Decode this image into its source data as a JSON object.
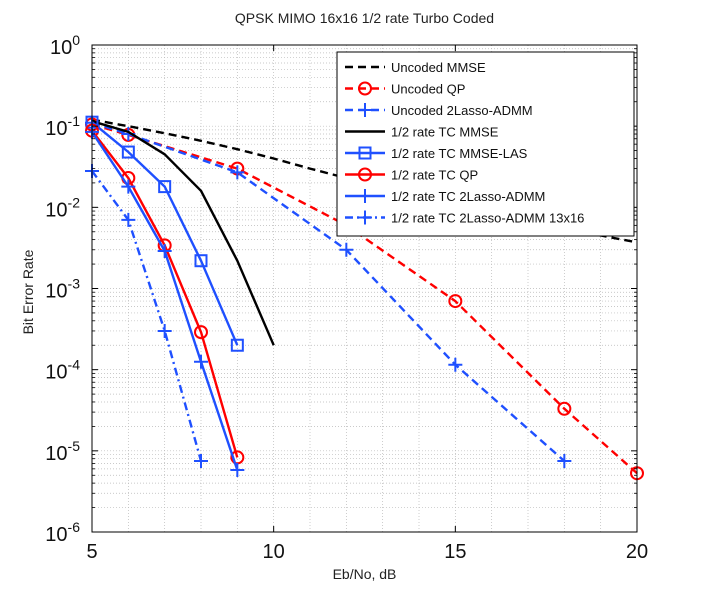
{
  "chart_data": {
    "type": "line",
    "title": "QPSK MIMO 16x16 1/2 rate Turbo Coded",
    "xlabel": "Eb/No, dB",
    "ylabel": "Bit Error Rate",
    "xlim": [
      5,
      20
    ],
    "ylim": [
      1e-06,
      1
    ],
    "yscale": "log",
    "grid": true,
    "legend_position": "top-right",
    "x_ticks": [
      "5",
      "10",
      "15",
      "20"
    ],
    "y_ticks": [
      {
        "base": "10",
        "exp": "0"
      },
      {
        "base": "10",
        "exp": "-1"
      },
      {
        "base": "10",
        "exp": "-2"
      },
      {
        "base": "10",
        "exp": "-3"
      },
      {
        "base": "10",
        "exp": "-4"
      },
      {
        "base": "10",
        "exp": "-5"
      },
      {
        "base": "10",
        "exp": "-6"
      }
    ],
    "series": [
      {
        "name": "Uncoded MMSE",
        "color": "#000000",
        "dash": "dashed",
        "marker": "none",
        "x": [
          5,
          6,
          7,
          8,
          9,
          10,
          11,
          12,
          13,
          14,
          15,
          16,
          17,
          18,
          19,
          20
        ],
        "y": [
          0.12,
          0.1,
          0.082,
          0.066,
          0.052,
          0.04,
          0.03,
          0.023,
          0.0175,
          0.0135,
          0.0104,
          0.0082,
          0.0065,
          0.0052,
          0.0045,
          0.0037
        ]
      },
      {
        "name": "Uncoded QP",
        "color": "#ff0000",
        "dash": "dashed",
        "marker": "circle",
        "x": [
          5,
          6,
          9,
          12,
          15,
          18,
          20
        ],
        "y": [
          0.105,
          0.078,
          0.03,
          0.006,
          0.0007,
          3.3e-05,
          5.3e-06
        ]
      },
      {
        "name": "Uncoded 2Lasso-ADMM",
        "color": "#1f50ff",
        "dash": "dashed",
        "marker": "plus",
        "x": [
          5,
          6,
          9,
          12,
          15,
          18
        ],
        "y": [
          0.11,
          0.08,
          0.027,
          0.003,
          0.000115,
          7.5e-06
        ]
      },
      {
        "name": "1/2 rate TC MMSE",
        "color": "#000000",
        "dash": "solid",
        "marker": "none",
        "x": [
          5,
          6,
          7,
          8,
          9,
          10
        ],
        "y": [
          0.115,
          0.085,
          0.045,
          0.016,
          0.0022,
          0.0002
        ]
      },
      {
        "name": "1/2 rate TC MMSE-LAS",
        "color": "#1f50ff",
        "dash": "solid",
        "marker": "square",
        "x": [
          5,
          6,
          7,
          8,
          9
        ],
        "y": [
          0.112,
          0.048,
          0.018,
          0.0022,
          0.0002
        ]
      },
      {
        "name": "1/2 rate TC QP",
        "color": "#ff0000",
        "dash": "solid",
        "marker": "circle",
        "x": [
          5,
          6,
          7,
          8,
          9
        ],
        "y": [
          0.088,
          0.023,
          0.0034,
          0.00029,
          8.3e-06
        ]
      },
      {
        "name": "1/2 rate TC 2Lasso-ADMM",
        "color": "#1f50ff",
        "dash": "solid",
        "marker": "plus",
        "x": [
          5,
          6,
          7,
          8,
          9
        ],
        "y": [
          0.085,
          0.018,
          0.0029,
          0.000125,
          5.8e-06
        ]
      },
      {
        "name": "1/2 rate TC 2Lasso-ADMM 13x16",
        "color": "#1f50ff",
        "dash": "dashdot",
        "marker": "plus",
        "x": [
          5,
          6,
          7,
          8
        ],
        "y": [
          0.028,
          0.007,
          0.0003,
          7.5e-06
        ]
      }
    ]
  }
}
